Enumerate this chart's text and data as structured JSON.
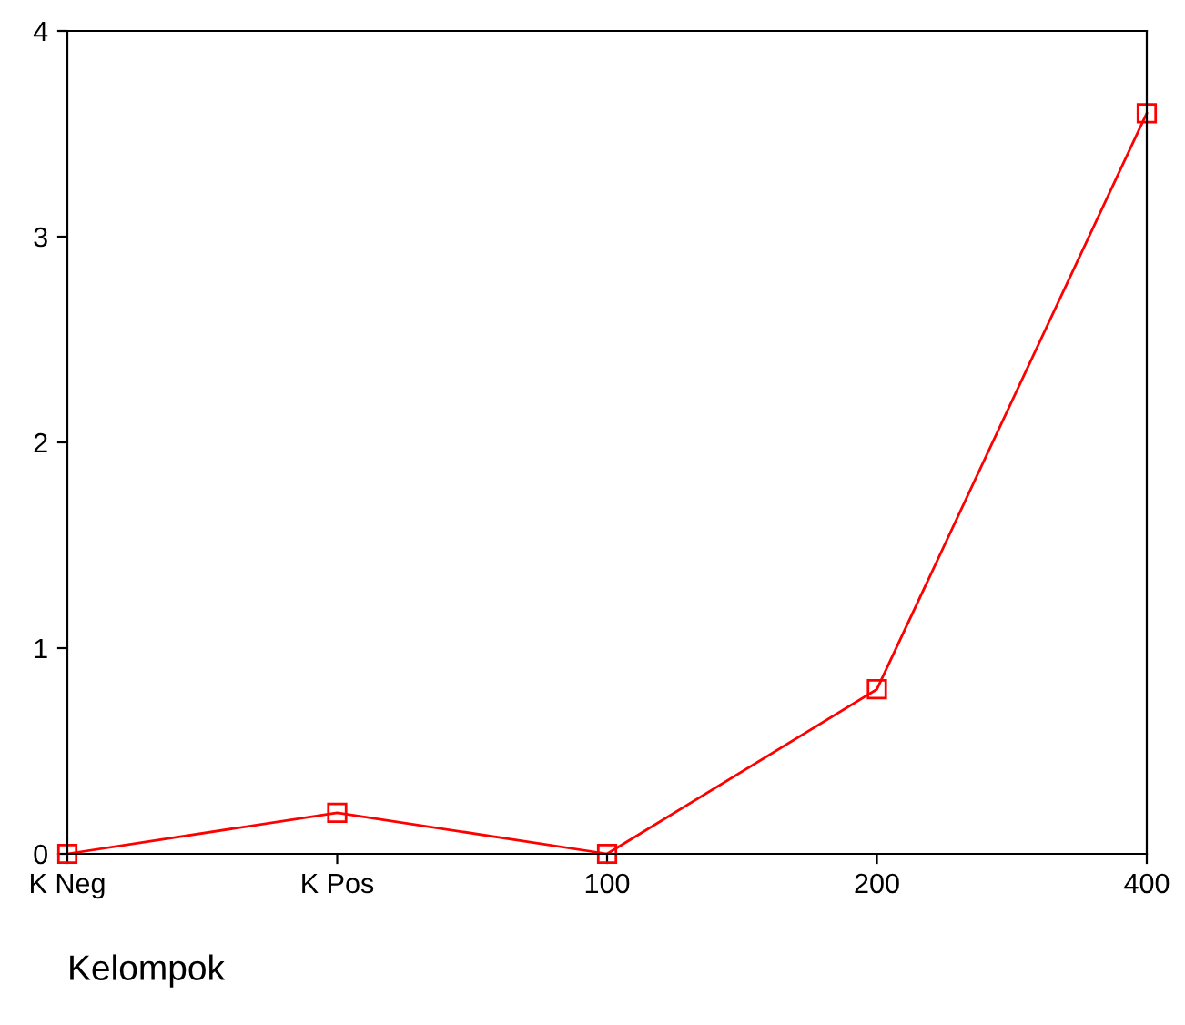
{
  "chart_data": {
    "type": "line",
    "xlabel": "Kelompok",
    "categories": [
      "K Neg",
      "K Pos",
      "100",
      "200",
      "400"
    ],
    "series": [
      {
        "color": "#ff0000",
        "values": [
          0,
          0.2,
          0,
          0.8,
          3.6
        ]
      }
    ],
    "ylim": [
      0,
      4
    ],
    "yticks": [
      0,
      1,
      2,
      3,
      4
    ],
    "marker": "square",
    "line_style": "solid"
  }
}
